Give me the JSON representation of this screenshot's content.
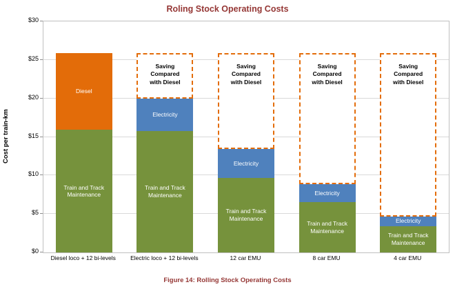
{
  "title": "Roling Stock Operating Costs",
  "caption": "Figure 14: Rolling Stock Operating Costs",
  "colors": {
    "title": "#953735",
    "caption": "#953735",
    "gridline": "#d9d9d9",
    "saving_border": "#E36C09"
  },
  "chart_data": {
    "type": "bar",
    "stacked": true,
    "title": "Roling Stock Operating Costs",
    "xlabel": "",
    "ylabel": "Cost per train-km",
    "ylim": [
      0,
      30
    ],
    "ytick_step": 5,
    "ytick_prefix": "$",
    "grid": true,
    "legend_position": "none",
    "categories": [
      "Diesel loco + 12 bi-levels",
      "Electric loco + 12 bi-levels",
      "12 car EMU",
      "8 car EMU",
      "4 car EMU"
    ],
    "series": [
      {
        "name": "Train and Track Maintenance",
        "color": "#76923C",
        "values": [
          15.9,
          15.8,
          9.7,
          6.5,
          3.4
        ]
      },
      {
        "name": "Diesel",
        "color": "#E36C09",
        "values": [
          10.0,
          0,
          0,
          0,
          0
        ]
      },
      {
        "name": "Electricity",
        "color": "#4F81BD",
        "values": [
          0,
          4.2,
          3.7,
          2.4,
          1.3
        ]
      }
    ],
    "saving_box": {
      "label": "Saving Compared with Diesel",
      "top_value": 25.9,
      "border_color": "#E36C09",
      "applies_to_category_indexes": [
        1,
        2,
        3,
        4
      ]
    }
  }
}
